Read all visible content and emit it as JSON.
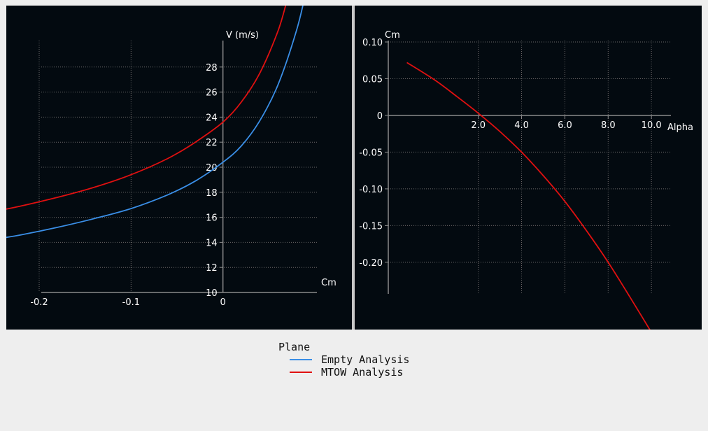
{
  "chart_data": [
    {
      "type": "line",
      "xlabel": "Cm",
      "ylabel": "V (m/s)",
      "xlim": [
        -0.2,
        0.1
      ],
      "ylim": [
        10,
        30
      ],
      "xticks": [
        -0.2,
        -0.1,
        0
      ],
      "xtick_labels": [
        "-0.2",
        "-0.1",
        "0"
      ],
      "yticks": [
        10,
        12,
        14,
        16,
        18,
        20,
        22,
        24,
        26,
        28
      ],
      "ytick_labels": [
        "10",
        "12",
        "14",
        "16",
        "18",
        "20",
        "22",
        "24",
        "26",
        "28"
      ],
      "grid": true,
      "series": [
        {
          "name": "Empty Analysis",
          "color": "#3a8ee6",
          "x": [
            -0.26,
            -0.22,
            -0.18,
            -0.14,
            -0.1,
            -0.06,
            -0.03,
            0,
            0.02,
            0.04,
            0.06,
            0.08,
            0.09
          ],
          "y": [
            14.1,
            14.6,
            15.2,
            15.9,
            16.7,
            17.8,
            18.9,
            20.4,
            21.7,
            23.7,
            26.6,
            30.9,
            33.9
          ]
        },
        {
          "name": "MTOW Analysis",
          "color": "#e01010",
          "x": [
            -0.26,
            -0.22,
            -0.18,
            -0.14,
            -0.1,
            -0.06,
            -0.03,
            0,
            0.02,
            0.04,
            0.06,
            0.07
          ],
          "y": [
            16.3,
            16.9,
            17.6,
            18.4,
            19.4,
            20.7,
            22.0,
            23.6,
            25.2,
            27.5,
            30.9,
            33.4
          ]
        }
      ]
    },
    {
      "type": "line",
      "xlabel": "Alpha",
      "ylabel": "Cm",
      "xlim": [
        -1.9,
        10.9
      ],
      "ylim": [
        -0.243,
        0.1
      ],
      "xticks": [
        2.0,
        4.0,
        6.0,
        8.0,
        10.0
      ],
      "xtick_labels": [
        "2.0",
        "4.0",
        "6.0",
        "8.0",
        "10.0"
      ],
      "yticks": [
        0.1,
        0.05,
        0,
        -0.05,
        -0.1,
        -0.15,
        -0.2
      ],
      "ytick_labels": [
        "0.10",
        "0.05",
        "0",
        "-0.05",
        "-0.10",
        "-0.15",
        "-0.20"
      ],
      "grid": true,
      "series": [
        {
          "color": "#e01010",
          "x": [
            -1.3,
            0,
            1,
            2,
            3,
            4,
            5,
            6,
            7,
            8,
            9,
            10.3
          ],
          "y": [
            0.072,
            0.048,
            0.026,
            0.003,
            -0.022,
            -0.05,
            -0.082,
            -0.117,
            -0.157,
            -0.2,
            -0.247,
            -0.31
          ]
        }
      ]
    }
  ],
  "legend": {
    "title": "Plane",
    "items": [
      {
        "label": "Empty Analysis",
        "color": "#3a8ee6"
      },
      {
        "label": "MTOW Analysis",
        "color": "#e01010"
      }
    ]
  }
}
